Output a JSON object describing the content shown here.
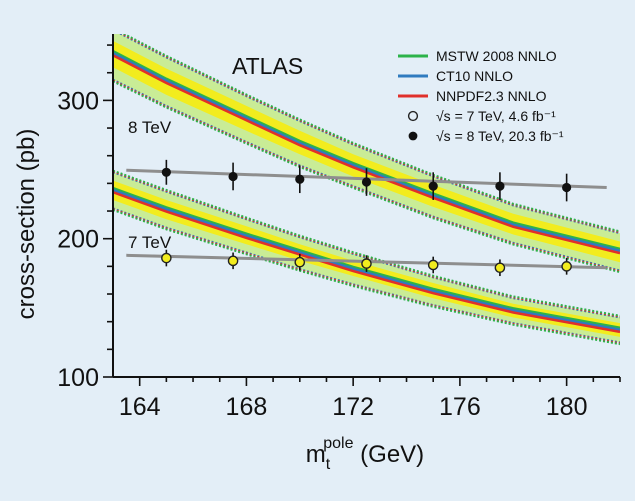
{
  "chart_data": {
    "type": "line",
    "annotation": "ATLAS",
    "xlabel": "m",
    "xlabel_sup": "pole",
    "xlabel_sub": "t",
    "xlabel_unit": " (GeV)",
    "ylabel": "cross-section (pb)",
    "xlim": [
      163,
      182
    ],
    "ylim": [
      100,
      348
    ],
    "xticks": [
      164,
      168,
      172,
      176,
      180
    ],
    "yticks": [
      100,
      200,
      300
    ],
    "grid": false,
    "legend_position": "top-right",
    "energy_labels": [
      "8 TeV",
      "7 TeV"
    ],
    "theory_series": [
      {
        "name": "MSTW 2008 NNLO",
        "color": "#2cb34a"
      },
      {
        "name": "CT10 NNLO",
        "color": "#2f7bbf"
      },
      {
        "name": "NNPDF2.3 NNLO",
        "color": "#e0302b"
      }
    ],
    "theory_bands": {
      "8 TeV": {
        "x": [
          163,
          165,
          168,
          170,
          172,
          175,
          178,
          182
        ],
        "central": [
          334,
          314,
          287,
          269,
          253,
          231,
          210,
          191
        ],
        "band_low": [
          324,
          304,
          278,
          261,
          245,
          223,
          203,
          183
        ],
        "band_high": [
          343,
          323,
          296,
          278,
          261,
          239,
          218,
          198
        ],
        "outer_low": [
          315,
          296,
          270,
          253,
          238,
          216,
          197,
          177
        ],
        "outer_high": [
          351,
          331,
          303,
          285,
          268,
          245,
          224,
          204
        ]
      },
      "7 TeV": {
        "x": [
          163,
          165,
          168,
          170,
          172,
          175,
          178,
          182
        ],
        "central": [
          235,
          221,
          202,
          190,
          178,
          162,
          148,
          134
        ],
        "band_low": [
          228,
          214,
          196,
          184,
          173,
          157,
          143,
          129
        ],
        "band_high": [
          242,
          228,
          209,
          196,
          184,
          168,
          153,
          139
        ],
        "outer_low": [
          222,
          208,
          190,
          178,
          167,
          152,
          139,
          125
        ],
        "outer_high": [
          248,
          234,
          214,
          201,
          189,
          172,
          157,
          143
        ]
      }
    },
    "measurements": [
      {
        "name": "√s = 8 TeV, 20.3 fb⁻¹",
        "marker": "filled",
        "x": [
          165,
          167.5,
          170,
          172.5,
          175,
          177.5,
          180
        ],
        "y": [
          248,
          245,
          243,
          241,
          238,
          238,
          237
        ],
        "err": [
          9,
          10,
          10,
          10,
          10,
          10,
          10
        ],
        "fit": {
          "x": [
            163.5,
            181.5
          ],
          "y": [
            249.5,
            237
          ]
        }
      },
      {
        "name": "√s = 7 TeV, 4.6 fb⁻¹",
        "marker": "open",
        "x": [
          165,
          167.5,
          170,
          172.5,
          175,
          177.5,
          180
        ],
        "y": [
          186,
          184,
          183,
          182,
          181,
          179,
          180
        ],
        "err": [
          6,
          6,
          6,
          6,
          6,
          6,
          6
        ],
        "fit": {
          "x": [
            163.5,
            181.5
          ],
          "y": [
            188,
            179
          ]
        }
      }
    ],
    "colors": {
      "band_fill": "#f2ec1e",
      "band_outer": "#c9ec96",
      "background": "#e3eef7",
      "fit_line": "#8e8e8e",
      "axis": "#111111"
    }
  }
}
